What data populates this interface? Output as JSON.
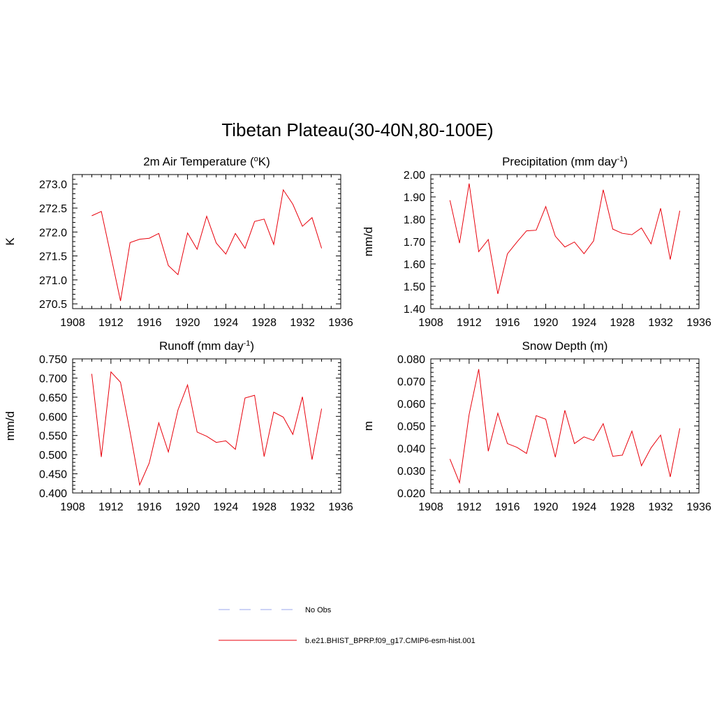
{
  "title": "Tibetan Plateau(30-40N,80-100E)",
  "legend": [
    {
      "label": "No Obs",
      "color": "#9aa7ee",
      "dash": true
    },
    {
      "label": "b.e21.BHIST_BPRP.f09_g17.CMIP6-esm-hist.001",
      "color": "#e8000b",
      "dash": false
    }
  ],
  "chart_data": [
    {
      "type": "line",
      "title": "2m Air Temperature (°K)",
      "title_parts": [
        "2m Air Temperature (",
        "o",
        "K)"
      ],
      "ylabel": "K",
      "xlim": [
        1908,
        1936
      ],
      "ylim": [
        270.4,
        273.2
      ],
      "xticks": [
        1908,
        1912,
        1916,
        1920,
        1924,
        1928,
        1932,
        1936
      ],
      "yticks": [
        "270.5",
        "271.0",
        "271.5",
        "272.0",
        "272.5",
        "273.0"
      ],
      "series": [
        {
          "x": [
            1910,
            1911,
            1912,
            1913,
            1914,
            1915,
            1916,
            1917,
            1918,
            1919,
            1920,
            1921,
            1922,
            1923,
            1924,
            1925,
            1926,
            1927,
            1928,
            1929,
            1930,
            1931,
            1932,
            1933,
            1934
          ],
          "values": [
            272.34,
            272.43,
            271.5,
            270.56,
            271.78,
            271.85,
            271.87,
            271.97,
            271.3,
            271.11,
            271.98,
            271.64,
            272.33,
            271.77,
            271.54,
            271.97,
            271.66,
            272.22,
            272.27,
            271.74,
            272.88,
            272.58,
            272.12,
            272.3,
            271.66
          ]
        }
      ]
    },
    {
      "type": "line",
      "title": "Precipitation (mm day-1)",
      "title_parts": [
        "Precipitation (mm day",
        "-1",
        ")"
      ],
      "ylabel": "mm/d",
      "xlim": [
        1908,
        1936
      ],
      "ylim": [
        1.4,
        2.0
      ],
      "xticks": [
        1908,
        1912,
        1916,
        1920,
        1924,
        1928,
        1932,
        1936
      ],
      "yticks": [
        "1.40",
        "1.50",
        "1.60",
        "1.70",
        "1.80",
        "1.90",
        "2.00"
      ],
      "series": [
        {
          "x": [
            1910,
            1911,
            1912,
            1913,
            1914,
            1915,
            1916,
            1917,
            1918,
            1919,
            1920,
            1921,
            1922,
            1923,
            1924,
            1925,
            1926,
            1927,
            1928,
            1929,
            1930,
            1931,
            1932,
            1933,
            1934
          ],
          "values": [
            1.885,
            1.693,
            1.96,
            1.655,
            1.709,
            1.466,
            1.645,
            1.698,
            1.748,
            1.751,
            1.857,
            1.724,
            1.676,
            1.698,
            1.646,
            1.703,
            1.932,
            1.756,
            1.737,
            1.731,
            1.761,
            1.69,
            1.849,
            1.62,
            1.838
          ]
        }
      ]
    },
    {
      "type": "line",
      "title": "Runoff (mm day-1)",
      "title_parts": [
        "Runoff (mm day",
        "-1",
        ")"
      ],
      "ylabel": "mm/d",
      "xlim": [
        1908,
        1936
      ],
      "ylim": [
        0.4,
        0.75
      ],
      "xticks": [
        1908,
        1912,
        1916,
        1920,
        1924,
        1928,
        1932,
        1936
      ],
      "yticks": [
        "0.400",
        "0.450",
        "0.500",
        "0.550",
        "0.600",
        "0.650",
        "0.700",
        "0.750"
      ],
      "series": [
        {
          "x": [
            1910,
            1911,
            1912,
            1913,
            1914,
            1915,
            1916,
            1917,
            1918,
            1919,
            1920,
            1921,
            1922,
            1923,
            1924,
            1925,
            1926,
            1927,
            1928,
            1929,
            1930,
            1931,
            1932,
            1933,
            1934
          ],
          "values": [
            0.711,
            0.494,
            0.716,
            0.689,
            0.559,
            0.421,
            0.478,
            0.583,
            0.507,
            0.617,
            0.682,
            0.559,
            0.548,
            0.532,
            0.536,
            0.514,
            0.648,
            0.655,
            0.495,
            0.611,
            0.598,
            0.553,
            0.651,
            0.487,
            0.62
          ]
        }
      ]
    },
    {
      "type": "line",
      "title": "Snow Depth (m)",
      "title_parts": [
        "Snow Depth (m)",
        "",
        ""
      ],
      "ylabel": "m",
      "xlim": [
        1908,
        1936
      ],
      "ylim": [
        0.02,
        0.08
      ],
      "xticks": [
        1908,
        1912,
        1916,
        1920,
        1924,
        1928,
        1932,
        1936
      ],
      "yticks": [
        "0.020",
        "0.030",
        "0.040",
        "0.050",
        "0.060",
        "0.070",
        "0.080"
      ],
      "series": [
        {
          "x": [
            1910,
            1911,
            1912,
            1913,
            1914,
            1915,
            1916,
            1917,
            1918,
            1919,
            1920,
            1921,
            1922,
            1923,
            1924,
            1925,
            1926,
            1927,
            1928,
            1929,
            1930,
            1931,
            1932,
            1933,
            1934
          ],
          "values": [
            0.0352,
            0.0246,
            0.0552,
            0.0754,
            0.0387,
            0.0557,
            0.0421,
            0.0404,
            0.0377,
            0.0546,
            0.053,
            0.036,
            0.057,
            0.0421,
            0.0451,
            0.0435,
            0.051,
            0.0364,
            0.0369,
            0.0477,
            0.0322,
            0.0402,
            0.0459,
            0.0272,
            0.0489
          ]
        }
      ]
    }
  ]
}
